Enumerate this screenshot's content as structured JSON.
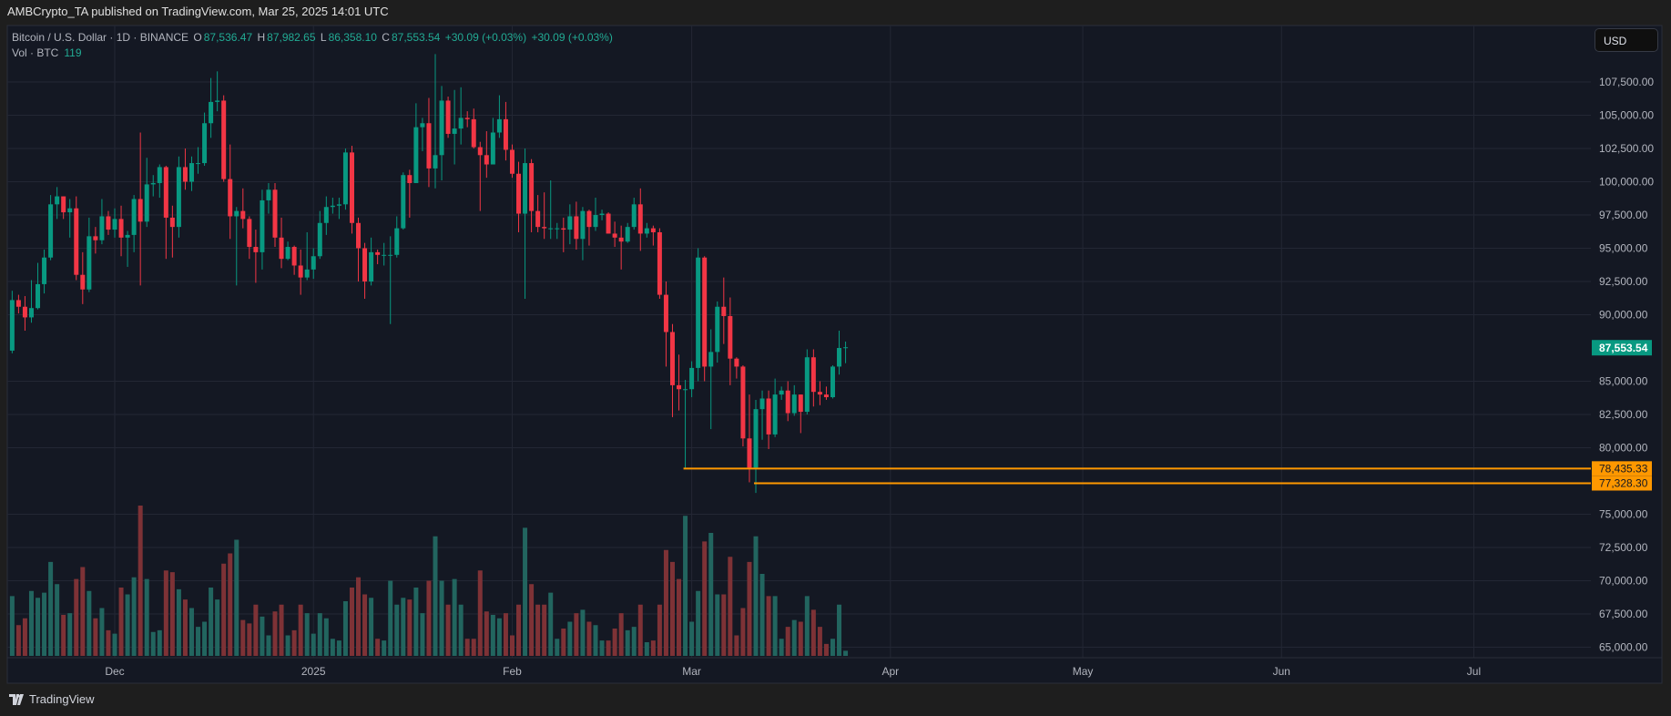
{
  "header": {
    "published": "AMBCrypto_TA published on TradingView.com, Mar 25, 2025 14:01 UTC"
  },
  "legend": {
    "symbol": "Bitcoin / U.S. Dollar · 1D · BINANCE",
    "o_label": "O",
    "o": "87,536.47",
    "h_label": "H",
    "h": "87,982.65",
    "l_label": "L",
    "l": "86,358.10",
    "c_label": "C",
    "c": "87,553.54",
    "change1": "+30.09 (+0.03%)",
    "change2": "+30.09 (+0.03%)"
  },
  "volume_legend": {
    "label": "Vol · BTC",
    "value": "119"
  },
  "currency_button": "USD",
  "footer": {
    "brand": "TradingView",
    "logo_icon": "tradingview-logo-icon"
  },
  "colors": {
    "up": "#089981",
    "down": "#F23645",
    "vol_up": "#22655f",
    "vol_down": "#7e3236",
    "level": "#FF9800",
    "background": "#141823"
  },
  "chart_data": {
    "type": "candlestick",
    "price_ticks": [
      107500,
      105000,
      102500,
      100000,
      97500,
      95000,
      92500,
      90000,
      85000,
      82500,
      80000,
      75000,
      72500,
      70000,
      67500,
      65000
    ],
    "price_tick_labels": [
      "107,500.00",
      "105,000.00",
      "102,500.00",
      "100,000.00",
      "97,500.00",
      "95,000.00",
      "92,500.00",
      "90,000.00",
      "85,000.00",
      "82,500.00",
      "80,000.00",
      "75,000.00",
      "72,500.00",
      "70,000.00",
      "67,500.00",
      "65,000.00"
    ],
    "time_ticks": [
      {
        "date": "2024-12-01",
        "label": "Dec"
      },
      {
        "date": "2025-01-01",
        "label": "2025"
      },
      {
        "date": "2025-02-01",
        "label": "Feb"
      },
      {
        "date": "2025-03-01",
        "label": "Mar"
      },
      {
        "date": "2025-04-01",
        "label": "Apr"
      },
      {
        "date": "2025-05-01",
        "label": "May"
      },
      {
        "date": "2025-06-01",
        "label": "Jun"
      },
      {
        "date": "2025-07-01",
        "label": "Jul"
      }
    ],
    "last_price": {
      "value": 87553.54,
      "label": "87,553.54"
    },
    "levels": [
      {
        "value": 78435.33,
        "label": "78,435.33",
        "from": "2025-02-28"
      },
      {
        "value": 77328.3,
        "label": "77,328.30",
        "from": "2025-03-11"
      }
    ],
    "candles_columns": [
      "date",
      "open",
      "high",
      "low",
      "close",
      "volume_k"
    ],
    "candles": [
      [
        "2024-11-15",
        87300,
        91800,
        87100,
        91100,
        35
      ],
      [
        "2024-11-16",
        91100,
        91500,
        90100,
        90600,
        18
      ],
      [
        "2024-11-17",
        90600,
        91400,
        88800,
        89800,
        22
      ],
      [
        "2024-11-18",
        89800,
        92600,
        89400,
        90500,
        38
      ],
      [
        "2024-11-19",
        90500,
        93900,
        90400,
        92300,
        34
      ],
      [
        "2024-11-20",
        92300,
        94900,
        91600,
        94300,
        37
      ],
      [
        "2024-11-21",
        94300,
        99000,
        94100,
        98300,
        55
      ],
      [
        "2024-11-22",
        98300,
        99600,
        97200,
        98900,
        42
      ],
      [
        "2024-11-23",
        98900,
        98900,
        97200,
        97700,
        24
      ],
      [
        "2024-11-24",
        97700,
        98700,
        95800,
        98000,
        25
      ],
      [
        "2024-11-25",
        98000,
        98900,
        92600,
        93000,
        45
      ],
      [
        "2024-11-26",
        93000,
        94700,
        90800,
        91900,
        52
      ],
      [
        "2024-11-27",
        91900,
        97300,
        91700,
        95900,
        38
      ],
      [
        "2024-11-28",
        95900,
        96600,
        94600,
        95600,
        22
      ],
      [
        "2024-11-29",
        95600,
        98700,
        95300,
        97400,
        28
      ],
      [
        "2024-11-30",
        97400,
        97800,
        96000,
        96400,
        15
      ],
      [
        "2024-12-01",
        96400,
        98000,
        95800,
        97200,
        13
      ],
      [
        "2024-12-02",
        97200,
        98200,
        94400,
        95800,
        40
      ],
      [
        "2024-12-03",
        95800,
        96300,
        93600,
        96000,
        36
      ],
      [
        "2024-12-04",
        96000,
        99000,
        94700,
        98700,
        46
      ],
      [
        "2024-12-05",
        98700,
        103700,
        92200,
        97000,
        88
      ],
      [
        "2024-12-06",
        97000,
        101800,
        96600,
        99800,
        45
      ],
      [
        "2024-12-07",
        99800,
        100500,
        98900,
        99900,
        14
      ],
      [
        "2024-12-08",
        99900,
        101300,
        98800,
        101100,
        15
      ],
      [
        "2024-12-09",
        101100,
        101200,
        94200,
        97300,
        50
      ],
      [
        "2024-12-10",
        97300,
        98200,
        94300,
        96600,
        49
      ],
      [
        "2024-12-11",
        96600,
        101900,
        95800,
        101100,
        39
      ],
      [
        "2024-12-12",
        101100,
        102500,
        99400,
        100000,
        33
      ],
      [
        "2024-12-13",
        100000,
        101900,
        99300,
        101400,
        28
      ],
      [
        "2024-12-14",
        101400,
        102600,
        100600,
        101400,
        17
      ],
      [
        "2024-12-15",
        101400,
        105200,
        101200,
        104400,
        20
      ],
      [
        "2024-12-16",
        104400,
        107800,
        103300,
        106000,
        40
      ],
      [
        "2024-12-17",
        106000,
        108300,
        105300,
        106100,
        33
      ],
      [
        "2024-12-18",
        106100,
        106500,
        100000,
        100200,
        54
      ],
      [
        "2024-12-19",
        100200,
        102800,
        95700,
        97400,
        60
      ],
      [
        "2024-12-20",
        97400,
        98100,
        92200,
        97800,
        68
      ],
      [
        "2024-12-21",
        97800,
        99500,
        96500,
        97200,
        21
      ],
      [
        "2024-12-22",
        97200,
        97400,
        94200,
        95100,
        19
      ],
      [
        "2024-12-23",
        95100,
        96400,
        92400,
        94700,
        30
      ],
      [
        "2024-12-24",
        94700,
        99400,
        93400,
        98600,
        23
      ],
      [
        "2024-12-25",
        98600,
        99900,
        97600,
        99400,
        12
      ],
      [
        "2024-12-26",
        99400,
        99900,
        95100,
        95800,
        26
      ],
      [
        "2024-12-27",
        95800,
        97300,
        93500,
        94200,
        30
      ],
      [
        "2024-12-28",
        94200,
        95500,
        94100,
        95100,
        12
      ],
      [
        "2024-12-29",
        95100,
        95200,
        93000,
        93700,
        15
      ],
      [
        "2024-12-30",
        93700,
        94900,
        91500,
        92800,
        30
      ],
      [
        "2024-12-31",
        92800,
        96200,
        92600,
        93400,
        25
      ],
      [
        "2025-01-01",
        93400,
        95000,
        92700,
        94400,
        13
      ],
      [
        "2025-01-02",
        94400,
        97800,
        94200,
        96900,
        25
      ],
      [
        "2025-01-03",
        96900,
        98900,
        96000,
        98100,
        22
      ],
      [
        "2025-01-04",
        98100,
        98800,
        97600,
        98200,
        10
      ],
      [
        "2025-01-05",
        98200,
        98800,
        97200,
        98300,
        9
      ],
      [
        "2025-01-06",
        98300,
        102500,
        97900,
        102200,
        32
      ],
      [
        "2025-01-07",
        102200,
        102700,
        96100,
        96900,
        40
      ],
      [
        "2025-01-08",
        96900,
        97300,
        92500,
        95000,
        46
      ],
      [
        "2025-01-09",
        95000,
        95400,
        91200,
        92500,
        36
      ],
      [
        "2025-01-10",
        92500,
        95800,
        92200,
        94700,
        34
      ],
      [
        "2025-01-11",
        94700,
        94900,
        93800,
        94500,
        10
      ],
      [
        "2025-01-12",
        94500,
        95400,
        93700,
        94500,
        9
      ],
      [
        "2025-01-13",
        94500,
        95900,
        89300,
        94500,
        44
      ],
      [
        "2025-01-14",
        94500,
        97400,
        94300,
        96500,
        30
      ],
      [
        "2025-01-15",
        96500,
        100700,
        96400,
        100500,
        34
      ],
      [
        "2025-01-16",
        100500,
        100900,
        97300,
        99900,
        33
      ],
      [
        "2025-01-17",
        99900,
        105900,
        99900,
        104100,
        40
      ],
      [
        "2025-01-18",
        104100,
        104800,
        102300,
        104400,
        25
      ],
      [
        "2025-01-19",
        104400,
        106300,
        99600,
        101000,
        44
      ],
      [
        "2025-01-20",
        101000,
        109600,
        99500,
        102000,
        70
      ],
      [
        "2025-01-21",
        102000,
        107200,
        100100,
        106100,
        44
      ],
      [
        "2025-01-22",
        106100,
        106400,
        103300,
        103600,
        30
      ],
      [
        "2025-01-23",
        103600,
        106900,
        101300,
        104000,
        45
      ],
      [
        "2025-01-24",
        104000,
        107100,
        102800,
        104800,
        30
      ],
      [
        "2025-01-25",
        104800,
        105300,
        104100,
        104700,
        10
      ],
      [
        "2025-01-26",
        104700,
        105500,
        102500,
        102600,
        10
      ],
      [
        "2025-01-27",
        102600,
        103000,
        97800,
        102000,
        50
      ],
      [
        "2025-01-28",
        102000,
        103800,
        100300,
        101300,
        26
      ],
      [
        "2025-01-29",
        101300,
        104800,
        101300,
        103700,
        24
      ],
      [
        "2025-01-30",
        103700,
        106500,
        103300,
        104700,
        22
      ],
      [
        "2025-01-31",
        104700,
        106000,
        101600,
        102400,
        25
      ],
      [
        "2025-02-01",
        102400,
        102800,
        100300,
        100600,
        12
      ],
      [
        "2025-02-02",
        100600,
        101500,
        96200,
        97600,
        30
      ],
      [
        "2025-02-03",
        97600,
        102500,
        91200,
        101400,
        75
      ],
      [
        "2025-02-04",
        101400,
        101700,
        96200,
        97800,
        42
      ],
      [
        "2025-02-05",
        97800,
        99000,
        96200,
        96600,
        30
      ],
      [
        "2025-02-06",
        96600,
        99200,
        95700,
        96500,
        30
      ],
      [
        "2025-02-07",
        96500,
        100100,
        95700,
        96500,
        37
      ],
      [
        "2025-02-08",
        96500,
        96900,
        95700,
        96500,
        10
      ],
      [
        "2025-02-09",
        96500,
        97300,
        94700,
        96400,
        16
      ],
      [
        "2025-02-10",
        96400,
        98300,
        95300,
        97400,
        20
      ],
      [
        "2025-02-11",
        97400,
        98500,
        94900,
        95700,
        25
      ],
      [
        "2025-02-12",
        95700,
        98100,
        94100,
        97800,
        27
      ],
      [
        "2025-02-13",
        97800,
        97900,
        95200,
        96600,
        20
      ],
      [
        "2025-02-14",
        96600,
        98800,
        96300,
        97500,
        18
      ],
      [
        "2025-02-15",
        97500,
        97900,
        97100,
        97600,
        9
      ],
      [
        "2025-02-16",
        97600,
        97700,
        96100,
        96100,
        9
      ],
      [
        "2025-02-17",
        96100,
        97000,
        95100,
        95800,
        16
      ],
      [
        "2025-02-18",
        95800,
        96700,
        93400,
        95500,
        25
      ],
      [
        "2025-02-19",
        95500,
        96900,
        95400,
        96600,
        15
      ],
      [
        "2025-02-20",
        96600,
        98800,
        96400,
        98300,
        17
      ],
      [
        "2025-02-21",
        98300,
        99500,
        94800,
        96100,
        30
      ],
      [
        "2025-02-22",
        96100,
        96900,
        95800,
        96500,
        8
      ],
      [
        "2025-02-23",
        96500,
        96700,
        95200,
        96200,
        9
      ],
      [
        "2025-02-24",
        96200,
        96500,
        91200,
        91500,
        30
      ],
      [
        "2025-02-25",
        91500,
        92500,
        86100,
        88700,
        62
      ],
      [
        "2025-02-26",
        88700,
        89300,
        82300,
        84700,
        55
      ],
      [
        "2025-02-27",
        84700,
        87000,
        82800,
        84400,
        45
      ],
      [
        "2025-02-28",
        84400,
        85100,
        78400,
        84400,
        82
      ],
      [
        "2025-03-01",
        84400,
        86500,
        83800,
        86000,
        20
      ],
      [
        "2025-03-02",
        86000,
        95000,
        85000,
        94300,
        38
      ],
      [
        "2025-03-03",
        94300,
        94400,
        85000,
        86100,
        67
      ],
      [
        "2025-03-04",
        86100,
        88900,
        81400,
        87200,
        72
      ],
      [
        "2025-03-05",
        87200,
        91000,
        86400,
        90600,
        36
      ],
      [
        "2025-03-06",
        90600,
        92800,
        87800,
        89900,
        36
      ],
      [
        "2025-03-07",
        89900,
        91300,
        84700,
        86700,
        58
      ],
      [
        "2025-03-08",
        86700,
        86800,
        85200,
        86100,
        12
      ],
      [
        "2025-03-09",
        86100,
        86200,
        80100,
        80700,
        28
      ],
      [
        "2025-03-10",
        80700,
        84000,
        77400,
        78500,
        55
      ],
      [
        "2025-03-11",
        78500,
        83600,
        76600,
        82900,
        70
      ],
      [
        "2025-03-12",
        82900,
        84300,
        80600,
        83700,
        48
      ],
      [
        "2025-03-13",
        83700,
        84300,
        79900,
        81000,
        35
      ],
      [
        "2025-03-14",
        81000,
        85200,
        80800,
        84000,
        35
      ],
      [
        "2025-03-15",
        84000,
        84600,
        83600,
        84300,
        10
      ],
      [
        "2025-03-16",
        84300,
        85000,
        82000,
        82600,
        17
      ],
      [
        "2025-03-17",
        82600,
        84700,
        82400,
        84000,
        21
      ],
      [
        "2025-03-18",
        84000,
        84000,
        81100,
        82700,
        20
      ],
      [
        "2025-03-19",
        82700,
        87400,
        82500,
        86800,
        35
      ],
      [
        "2025-03-20",
        86800,
        87400,
        83100,
        84200,
        27
      ],
      [
        "2025-03-21",
        84200,
        85000,
        83200,
        84000,
        17
      ],
      [
        "2025-03-22",
        84000,
        84600,
        83600,
        83800,
        7
      ],
      [
        "2025-03-23",
        83800,
        86200,
        83700,
        86100,
        10
      ],
      [
        "2025-03-24",
        86100,
        88800,
        85500,
        87500,
        30
      ],
      [
        "2025-03-25",
        87536.47,
        87982.65,
        86358.1,
        87553.54,
        3
      ]
    ]
  }
}
